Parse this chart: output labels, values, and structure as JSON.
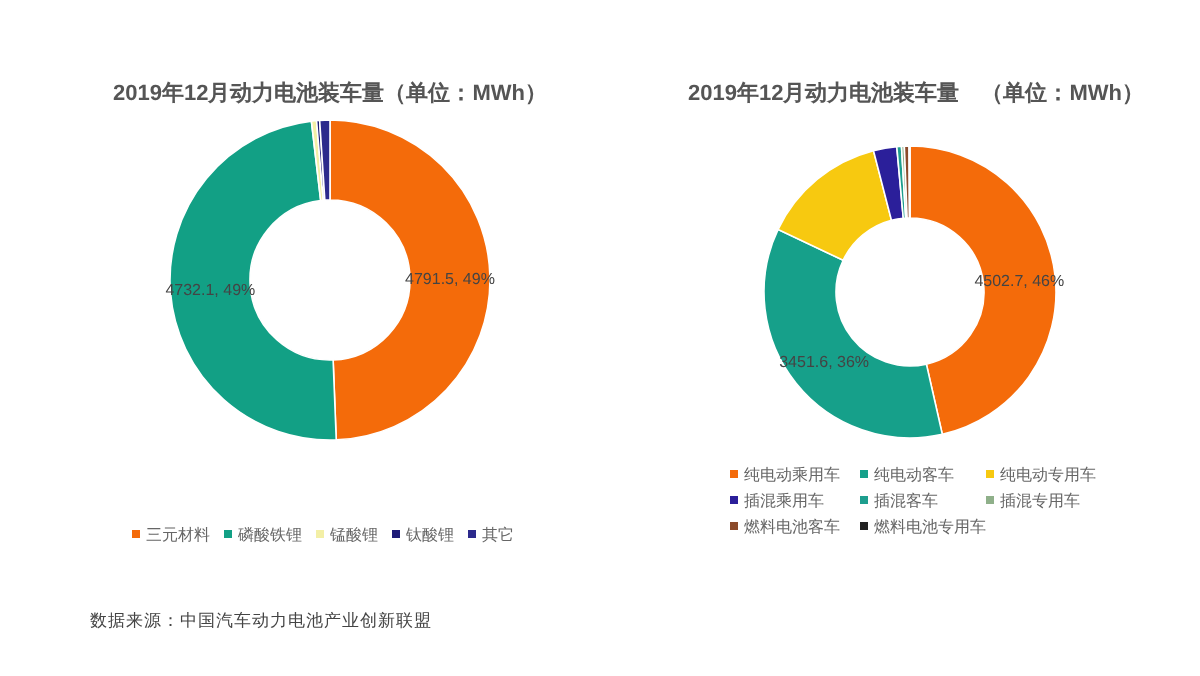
{
  "chart_data": [
    {
      "type": "donut",
      "title": "2019年12月动力电池装车量（单位：MWh）",
      "categories": [
        "三元材料",
        "磷酸铁锂",
        "锰酸锂",
        "钛酸锂",
        "其它"
      ],
      "values": [
        4791.5,
        4732.1,
        50,
        30,
        100
      ],
      "colors": [
        "#f46b0a",
        "#12a085",
        "#f3efa6",
        "#1e1b78",
        "#2c2a8c"
      ],
      "value_labels": [
        "4791.5, 49%",
        "4732.1, 49%",
        null,
        null,
        null
      ],
      "legend": "bottom",
      "annotations": [
        "数据来源：中国汽车动力电池产业创新联盟"
      ]
    },
    {
      "type": "donut",
      "title": "2019年12月动力电池装车量　（单位：MWh）",
      "categories": [
        "纯电动乘用车",
        "纯电动客车",
        "纯电动专用车",
        "插混乘用车",
        "插混客车",
        "插混专用车",
        "燃料电池客车",
        "燃料电池专用车"
      ],
      "values": [
        4502.7,
        3451.6,
        1350,
        250,
        50,
        30,
        50,
        10
      ],
      "colors": [
        "#f46b0a",
        "#16a08a",
        "#f7c910",
        "#2b1f9a",
        "#1d9e8e",
        "#8fb08a",
        "#8b4a2a",
        "#222222"
      ],
      "value_labels": [
        "4502.7, 46%",
        "3451.6, 36%",
        null,
        null,
        null,
        null,
        null,
        null
      ],
      "legend": "bottom"
    }
  ]
}
